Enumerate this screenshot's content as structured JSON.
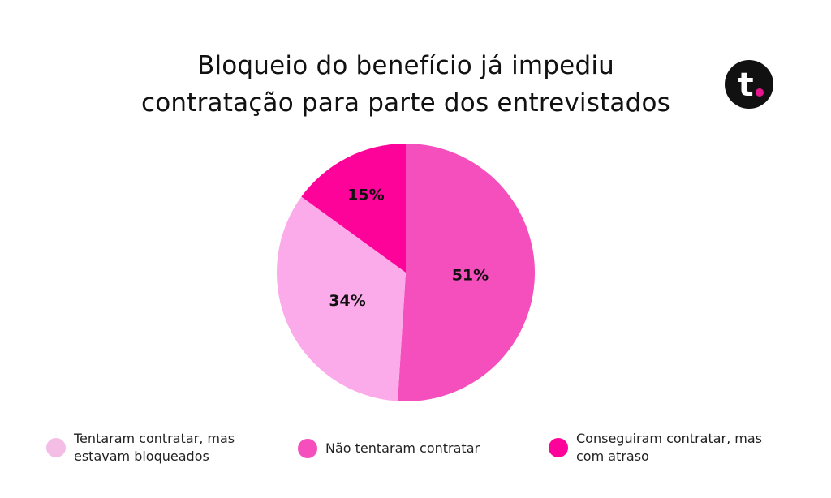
{
  "chart_data": {
    "type": "pie",
    "title": "Bloqueio do benefício já impediu contratação para parte dos entrevistados",
    "title_lines": [
      "Bloqueio do benefício já impediu",
      "contratação para parte dos entrevistados"
    ],
    "slices": [
      {
        "label": "Não tentaram contratar",
        "value": 51,
        "display": "51%",
        "color": "#f54ebd"
      },
      {
        "label": "Tentaram contratar, mas estavam bloqueados",
        "value": 34,
        "display": "34%",
        "color": "#fbaaea"
      },
      {
        "label": "Conseguiram contratar, mas com atraso",
        "value": 15,
        "display": "15%",
        "color": "#fd0399"
      }
    ],
    "legend": {
      "placement": "bottom",
      "items": [
        {
          "line1": "Tentaram contratar, mas",
          "line2": "estavam bloqueados",
          "color": "#f3bde6"
        },
        {
          "line1": "Não tentaram contratar",
          "line2": "",
          "color": "#f54ebd"
        },
        {
          "line1": "Conseguiram contratar, mas",
          "line2": "com atraso",
          "color": "#fd0399"
        }
      ]
    }
  },
  "logo": {
    "letter": "t",
    "icon": "brand-t-logo-icon",
    "background_color": "#111111",
    "dot_color": "#e8168e"
  }
}
